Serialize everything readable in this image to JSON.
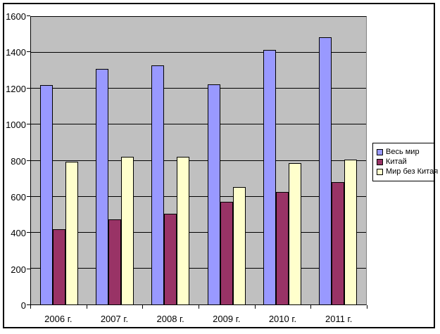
{
  "chart_data": {
    "type": "bar",
    "title": "",
    "categories": [
      "2006 г.",
      "2007 г.",
      "2008 г.",
      "2009 г.",
      "2010 г.",
      "2011 г."
    ],
    "series": [
      {
        "id": "world",
        "name": "Весь мир",
        "color": "#9999FF",
        "values": [
          1220,
          1310,
          1330,
          1225,
          1415,
          1485
        ]
      },
      {
        "id": "china",
        "name": "Китай",
        "color": "#993366",
        "values": [
          420,
          475,
          505,
          570,
          625,
          680
        ]
      },
      {
        "id": "world-without-china",
        "name": "Мир без Китая",
        "color": "#FFFFCC",
        "values": [
          795,
          820,
          820,
          655,
          785,
          805
        ]
      }
    ],
    "ylim": [
      0,
      1600
    ],
    "ytick_step": 200,
    "yticks": [
      "0",
      "200",
      "400",
      "600",
      "800",
      "1000",
      "1200",
      "1400",
      "1600"
    ],
    "grid": true,
    "legend_position": "right",
    "plot_background": "#C0C0C0",
    "gridline_color": "#000000",
    "bar_border_color": "#000000",
    "frame_border_color": "#000000"
  }
}
